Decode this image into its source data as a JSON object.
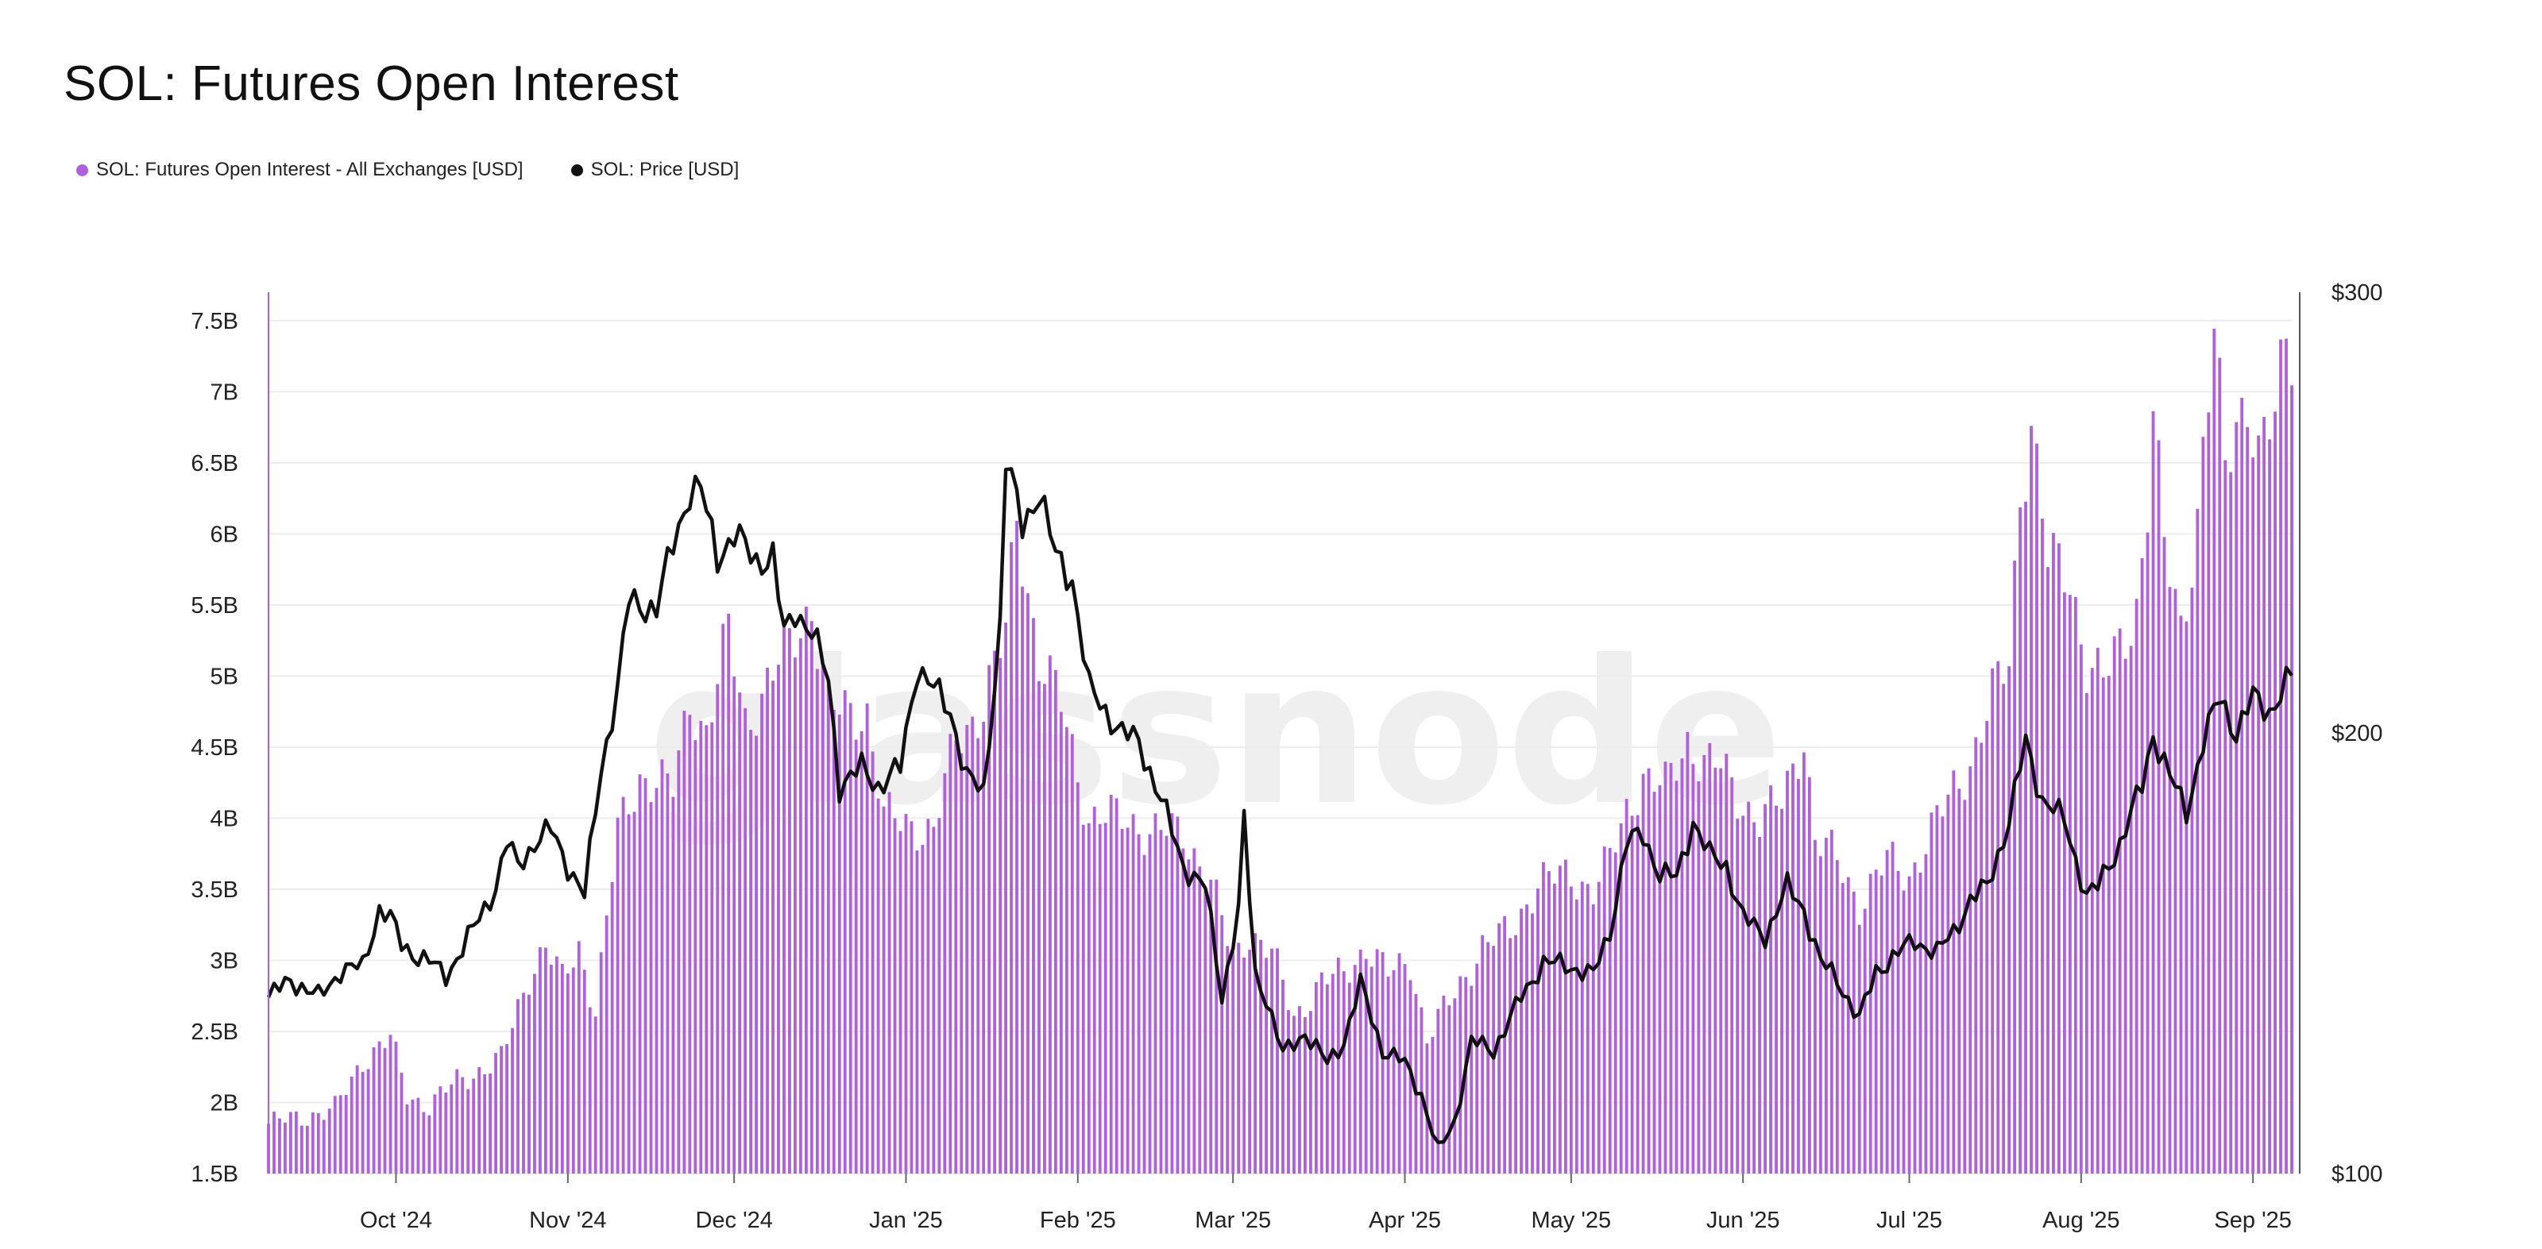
{
  "chart_data": {
    "type": "bar",
    "title": "SOL: Futures Open Interest",
    "watermark": "glassnode",
    "legend_placement": "top-left",
    "grid": true,
    "x_range": [
      "2024-09-08",
      "2025-09-08"
    ],
    "x_ticks": [
      "Oct '24",
      "Nov '24",
      "Dec '24",
      "Jan '25",
      "Feb '25",
      "Mar '25",
      "Apr '25",
      "May '25",
      "Jun '25",
      "Jul '25",
      "Aug '25",
      "Sep '25"
    ],
    "y_left": {
      "ylim": [
        1500000000,
        7700000000
      ],
      "ticks": [
        "1.5B",
        "2B",
        "2.5B",
        "3B",
        "3.5B",
        "4B",
        "4.5B",
        "5B",
        "5.5B",
        "6B",
        "6.5B",
        "7B",
        "7.5B"
      ]
    },
    "y_right": {
      "ylim": [
        100,
        300
      ],
      "ticks": [
        "$100",
        "$200",
        "$300"
      ]
    },
    "series": [
      {
        "name": "SOL: Futures Open Interest - All Exchanges [USD]",
        "type": "bar",
        "axis": "left",
        "color": "#b060dc",
        "keypoints": [
          [
            "2024-09-08",
            1850000000.0
          ],
          [
            "2024-09-20",
            1950000000.0
          ],
          [
            "2024-09-25",
            2300000000.0
          ],
          [
            "2024-09-30",
            2450000000.0
          ],
          [
            "2024-10-03",
            2050000000.0
          ],
          [
            "2024-10-07",
            1980000000.0
          ],
          [
            "2024-10-12",
            2150000000.0
          ],
          [
            "2024-10-20",
            2300000000.0
          ],
          [
            "2024-10-25",
            2900000000.0
          ],
          [
            "2024-10-28",
            3100000000.0
          ],
          [
            "2024-10-31",
            2850000000.0
          ],
          [
            "2024-11-03",
            3100000000.0
          ],
          [
            "2024-11-06",
            2650000000.0
          ],
          [
            "2024-11-10",
            3900000000.0
          ],
          [
            "2024-11-14",
            4300000000.0
          ],
          [
            "2024-11-20",
            4200000000.0
          ],
          [
            "2024-11-23",
            4850000000.0
          ],
          [
            "2024-11-26",
            4600000000.0
          ],
          [
            "2024-11-30",
            5300000000.0
          ],
          [
            "2024-12-03",
            4700000000.0
          ],
          [
            "2024-12-06",
            4850000000.0
          ],
          [
            "2024-12-12",
            5300000000.0
          ],
          [
            "2024-12-15",
            5500000000.0
          ],
          [
            "2024-12-18",
            4750000000.0
          ],
          [
            "2024-12-25",
            4750000000.0
          ],
          [
            "2024-12-28",
            4000000000.0
          ],
          [
            "2025-01-03",
            3950000000.0
          ],
          [
            "2025-01-06",
            3900000000.0
          ],
          [
            "2025-01-10",
            4550000000.0
          ],
          [
            "2025-01-15",
            4800000000.0
          ],
          [
            "2025-01-19",
            5300000000.0
          ],
          [
            "2025-01-21",
            6150000000.0
          ],
          [
            "2025-01-25",
            5100000000.0
          ],
          [
            "2025-01-29",
            4800000000.0
          ],
          [
            "2025-02-03",
            4000000000.0
          ],
          [
            "2025-02-10",
            4000000000.0
          ],
          [
            "2025-02-14",
            3900000000.0
          ],
          [
            "2025-02-20",
            3900000000.0
          ],
          [
            "2025-02-25",
            3550000000.0
          ],
          [
            "2025-03-01",
            3000000000.0
          ],
          [
            "2025-03-04",
            3200000000.0
          ],
          [
            "2025-03-08",
            3050000000.0
          ],
          [
            "2025-03-12",
            2600000000.0
          ],
          [
            "2025-03-17",
            2850000000.0
          ],
          [
            "2025-03-21",
            2900000000.0
          ],
          [
            "2025-03-25",
            3100000000.0
          ],
          [
            "2025-03-29",
            2900000000.0
          ],
          [
            "2025-04-02",
            3000000000.0
          ],
          [
            "2025-04-05",
            2450000000.0
          ],
          [
            "2025-04-09",
            2700000000.0
          ],
          [
            "2025-04-12",
            2900000000.0
          ],
          [
            "2025-04-15",
            3100000000.0
          ],
          [
            "2025-04-20",
            3200000000.0
          ],
          [
            "2025-04-25",
            3550000000.0
          ],
          [
            "2025-05-01",
            3600000000.0
          ],
          [
            "2025-05-05",
            3500000000.0
          ],
          [
            "2025-05-08",
            3700000000.0
          ],
          [
            "2025-05-11",
            4050000000.0
          ],
          [
            "2025-05-14",
            4300000000.0
          ],
          [
            "2025-05-18",
            4200000000.0
          ],
          [
            "2025-05-22",
            4550000000.0
          ],
          [
            "2025-05-25",
            4400000000.0
          ],
          [
            "2025-05-28",
            4350000000.0
          ],
          [
            "2025-05-31",
            4150000000.0
          ],
          [
            "2025-06-04",
            4000000000.0
          ],
          [
            "2025-06-08",
            4100000000.0
          ],
          [
            "2025-06-12",
            4600000000.0
          ],
          [
            "2025-06-14",
            3850000000.0
          ],
          [
            "2025-06-18",
            3700000000.0
          ],
          [
            "2025-06-22",
            3400000000.0
          ],
          [
            "2025-06-27",
            3700000000.0
          ],
          [
            "2025-07-01",
            3600000000.0
          ],
          [
            "2025-07-05",
            3900000000.0
          ],
          [
            "2025-07-09",
            4200000000.0
          ],
          [
            "2025-07-12",
            4400000000.0
          ],
          [
            "2025-07-16",
            4850000000.0
          ],
          [
            "2025-07-19",
            5100000000.0
          ],
          [
            "2025-07-21",
            6300000000.0
          ],
          [
            "2025-07-23",
            6800000000.0
          ],
          [
            "2025-07-26",
            5800000000.0
          ],
          [
            "2025-07-30",
            5700000000.0
          ],
          [
            "2025-08-02",
            5100000000.0
          ],
          [
            "2025-08-05",
            4950000000.0
          ],
          [
            "2025-08-09",
            5300000000.0
          ],
          [
            "2025-08-11",
            5500000000.0
          ],
          [
            "2025-08-13",
            6200000000.0
          ],
          [
            "2025-08-14",
            6800000000.0
          ],
          [
            "2025-08-16",
            5900000000.0
          ],
          [
            "2025-08-19",
            5350000000.0
          ],
          [
            "2025-08-22",
            6100000000.0
          ],
          [
            "2025-08-23",
            6600000000.0
          ],
          [
            "2025-08-25",
            7350000000.0
          ],
          [
            "2025-08-27",
            6450000000.0
          ],
          [
            "2025-08-29",
            6800000000.0
          ],
          [
            "2025-08-31",
            7000000000.0
          ],
          [
            "2025-09-02",
            6550000000.0
          ],
          [
            "2025-09-05",
            6800000000.0
          ],
          [
            "2025-09-07",
            7350000000.0
          ]
        ]
      },
      {
        "name": "SOL: Price [USD]",
        "type": "line",
        "axis": "right",
        "color": "#111111",
        "keypoints": [
          [
            "2024-09-08",
            140
          ],
          [
            "2024-09-12",
            144
          ],
          [
            "2024-09-17",
            140
          ],
          [
            "2024-09-21",
            146
          ],
          [
            "2024-09-25",
            147
          ],
          [
            "2024-09-28",
            160
          ],
          [
            "2024-09-30",
            158
          ],
          [
            "2024-10-02",
            152
          ],
          [
            "2024-10-04",
            150
          ],
          [
            "2024-10-07",
            148
          ],
          [
            "2024-10-10",
            145
          ],
          [
            "2024-10-13",
            151
          ],
          [
            "2024-10-16",
            158
          ],
          [
            "2024-10-19",
            165
          ],
          [
            "2024-10-21",
            175
          ],
          [
            "2024-10-23",
            170
          ],
          [
            "2024-10-26",
            175
          ],
          [
            "2024-10-29",
            178
          ],
          [
            "2024-11-01",
            170
          ],
          [
            "2024-11-04",
            163
          ],
          [
            "2024-11-07",
            192
          ],
          [
            "2024-11-10",
            210
          ],
          [
            "2024-11-12",
            230
          ],
          [
            "2024-11-17",
            228
          ],
          [
            "2024-11-20",
            243
          ],
          [
            "2024-11-23",
            255
          ],
          [
            "2024-11-25",
            255
          ],
          [
            "2024-11-28",
            240
          ],
          [
            "2024-12-01",
            245
          ],
          [
            "2024-12-05",
            239
          ],
          [
            "2024-12-08",
            240
          ],
          [
            "2024-12-10",
            222
          ],
          [
            "2024-12-12",
            228
          ],
          [
            "2024-12-15",
            223
          ],
          [
            "2024-12-18",
            212
          ],
          [
            "2024-12-20",
            188
          ],
          [
            "2024-12-24",
            192
          ],
          [
            "2024-12-27",
            188
          ],
          [
            "2024-12-31",
            192
          ],
          [
            "2025-01-03",
            215
          ],
          [
            "2025-01-06",
            210
          ],
          [
            "2025-01-09",
            205
          ],
          [
            "2025-01-12",
            190
          ],
          [
            "2025-01-15",
            186
          ],
          [
            "2025-01-18",
            225
          ],
          [
            "2025-01-19",
            262
          ],
          [
            "2025-01-22",
            247
          ],
          [
            "2025-01-25",
            255
          ],
          [
            "2025-01-28",
            240
          ],
          [
            "2025-01-31",
            235
          ],
          [
            "2025-02-03",
            210
          ],
          [
            "2025-02-06",
            205
          ],
          [
            "2025-02-09",
            200
          ],
          [
            "2025-02-12",
            198
          ],
          [
            "2025-02-16",
            185
          ],
          [
            "2025-02-20",
            170
          ],
          [
            "2025-02-24",
            165
          ],
          [
            "2025-02-27",
            140
          ],
          [
            "2025-03-02",
            160
          ],
          [
            "2025-03-03",
            180
          ],
          [
            "2025-03-05",
            145
          ],
          [
            "2025-03-07",
            140
          ],
          [
            "2025-03-10",
            127
          ],
          [
            "2025-03-14",
            132
          ],
          [
            "2025-03-18,",
            125
          ],
          [
            "2025-03-21",
            130
          ],
          [
            "2025-03-24",
            143
          ],
          [
            "2025-03-28",
            128
          ],
          [
            "2025-04-01",
            125
          ],
          [
            "2025-04-04",
            118
          ],
          [
            "2025-04-07",
            105
          ],
          [
            "2025-04-10",
            112
          ],
          [
            "2025-04-13",
            130
          ],
          [
            "2025-04-17",
            128
          ],
          [
            "2025-04-22",
            140
          ],
          [
            "2025-04-26",
            148
          ],
          [
            "2025-05-01",
            147
          ],
          [
            "2025-05-05",
            145
          ],
          [
            "2025-05-08",
            155
          ],
          [
            "2025-05-11",
            175
          ],
          [
            "2025-05-14",
            177
          ],
          [
            "2025-05-17",
            168
          ],
          [
            "2025-05-20",
            167
          ],
          [
            "2025-05-23",
            180
          ],
          [
            "2025-05-26",
            172
          ],
          [
            "2025-05-29",
            170
          ],
          [
            "2025-06-01",
            158
          ],
          [
            "2025-06-05",
            154
          ],
          [
            "2025-06-09",
            165
          ],
          [
            "2025-06-12",
            160
          ],
          [
            "2025-06-15",
            148
          ],
          [
            "2025-06-18",
            144
          ],
          [
            "2025-06-22",
            135
          ],
          [
            "2025-06-25",
            146
          ],
          [
            "2025-06-29",
            150
          ],
          [
            "2025-07-02",
            153
          ],
          [
            "2025-07-06",
            150
          ],
          [
            "2025-07-09",
            155
          ],
          [
            "2025-07-12",
            162
          ],
          [
            "2025-07-15",
            165
          ],
          [
            "2025-07-19",
            180
          ],
          [
            "2025-07-22",
            198
          ],
          [
            "2025-07-25",
            185
          ],
          [
            "2025-07-29",
            180
          ],
          [
            "2025-08-02",
            163
          ],
          [
            "2025-08-04",
            165
          ],
          [
            "2025-08-08",
            175
          ],
          [
            "2025-08-12",
            188
          ],
          [
            "2025-08-14",
            200
          ],
          [
            "2025-08-17",
            190
          ],
          [
            "2025-08-20",
            182
          ],
          [
            "2025-08-23",
            198
          ],
          [
            "2025-08-26",
            208
          ],
          [
            "2025-08-29",
            200
          ],
          [
            "2025-09-01",
            208
          ],
          [
            "2025-09-04",
            205
          ],
          [
            "2025-09-08",
            213
          ]
        ]
      }
    ]
  }
}
